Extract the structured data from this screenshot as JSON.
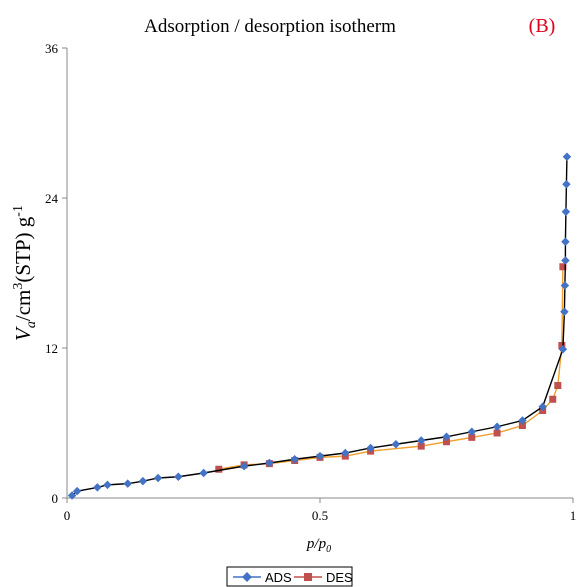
{
  "chart_data": {
    "type": "line",
    "title": "Adsorption / desorption isotherm",
    "panel_label": "(B)",
    "xlabel": {
      "main": "p/p",
      "sub": "0"
    },
    "ylabel": {
      "main": "V",
      "sub": "a",
      "rest": "/cm",
      "sup1": "3",
      "rest2": "(STP) g",
      "sup2": "-1"
    },
    "xlim": [
      0,
      1
    ],
    "ylim": [
      0,
      36
    ],
    "xticks": [
      0,
      0.5,
      1
    ],
    "xtick_labels": [
      "0",
      "0.5",
      "1"
    ],
    "yticks": [
      0,
      12,
      24,
      36
    ],
    "ytick_labels": [
      "0",
      "12",
      "24",
      "36"
    ],
    "grid": false,
    "legend_position": "bottom-center",
    "series": [
      {
        "name": "ADS",
        "color": "#4472C4",
        "line_color": "#000000",
        "marker": "diamond",
        "points": [
          [
            0.01,
            0.2
          ],
          [
            0.02,
            0.55
          ],
          [
            0.06,
            0.85
          ],
          [
            0.08,
            1.05
          ],
          [
            0.12,
            1.15
          ],
          [
            0.15,
            1.35
          ],
          [
            0.18,
            1.6
          ],
          [
            0.22,
            1.7
          ],
          [
            0.27,
            2.0
          ],
          [
            0.35,
            2.55
          ],
          [
            0.4,
            2.8
          ],
          [
            0.45,
            3.1
          ],
          [
            0.5,
            3.35
          ],
          [
            0.55,
            3.6
          ],
          [
            0.6,
            4.0
          ],
          [
            0.65,
            4.3
          ],
          [
            0.7,
            4.6
          ],
          [
            0.75,
            4.9
          ],
          [
            0.8,
            5.3
          ],
          [
            0.85,
            5.7
          ],
          [
            0.9,
            6.2
          ],
          [
            0.94,
            7.3
          ],
          [
            0.98,
            11.9
          ],
          [
            0.983,
            14.9
          ],
          [
            0.984,
            17.0
          ],
          [
            0.985,
            19.0
          ],
          [
            0.985,
            20.5
          ],
          [
            0.986,
            22.9
          ],
          [
            0.987,
            25.1
          ],
          [
            0.988,
            27.3
          ]
        ]
      },
      {
        "name": "DES",
        "color": "#C0504D",
        "line_color": "#F0A030",
        "marker": "square",
        "points": [
          [
            0.3,
            2.3
          ],
          [
            0.35,
            2.65
          ],
          [
            0.4,
            2.75
          ],
          [
            0.45,
            3.0
          ],
          [
            0.5,
            3.25
          ],
          [
            0.55,
            3.35
          ],
          [
            0.6,
            3.75
          ],
          [
            0.7,
            4.15
          ],
          [
            0.75,
            4.5
          ],
          [
            0.8,
            4.85
          ],
          [
            0.85,
            5.2
          ],
          [
            0.9,
            5.8
          ],
          [
            0.94,
            7.0
          ],
          [
            0.96,
            7.9
          ],
          [
            0.97,
            9.0
          ],
          [
            0.978,
            12.2
          ],
          [
            0.98,
            18.5
          ]
        ]
      }
    ]
  }
}
